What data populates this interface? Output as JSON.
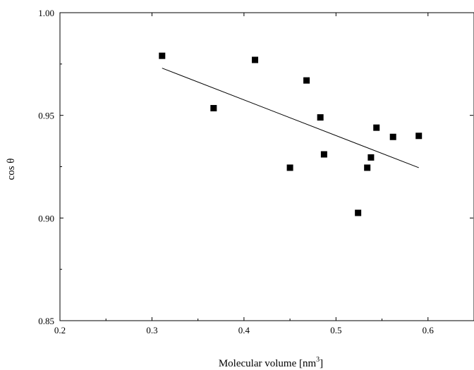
{
  "chart_data": {
    "type": "scatter",
    "title": "",
    "xlabel": "Molecular volume [nm",
    "xlabel_superscript": "3",
    "xlabel_suffix": "]",
    "ylabel": "cos θ",
    "xlim": [
      0.2,
      0.65
    ],
    "ylim": [
      0.85,
      1.0
    ],
    "xticks": [
      0.2,
      0.3,
      0.4,
      0.5,
      0.6
    ],
    "xtick_labels": [
      "0.2",
      "0.3",
      "0.4",
      "0.5",
      "0.6"
    ],
    "yticks": [
      0.85,
      0.9,
      0.95,
      1.0
    ],
    "ytick_labels": [
      "0.85",
      "0.90",
      "0.95",
      "1.00"
    ],
    "grid": false,
    "marker": "square",
    "marker_color": "#000000",
    "points": [
      {
        "x": 0.311,
        "y": 0.979
      },
      {
        "x": 0.367,
        "y": 0.9535
      },
      {
        "x": 0.412,
        "y": 0.977
      },
      {
        "x": 0.45,
        "y": 0.9245
      },
      {
        "x": 0.468,
        "y": 0.967
      },
      {
        "x": 0.483,
        "y": 0.949
      },
      {
        "x": 0.487,
        "y": 0.931
      },
      {
        "x": 0.524,
        "y": 0.9025
      },
      {
        "x": 0.534,
        "y": 0.9245
      },
      {
        "x": 0.538,
        "y": 0.9295
      },
      {
        "x": 0.544,
        "y": 0.944
      },
      {
        "x": 0.562,
        "y": 0.9395
      },
      {
        "x": 0.59,
        "y": 0.94
      }
    ],
    "fit_line": {
      "x": [
        0.311,
        0.59
      ],
      "y": [
        0.973,
        0.9245
      ],
      "color": "#000000"
    }
  }
}
